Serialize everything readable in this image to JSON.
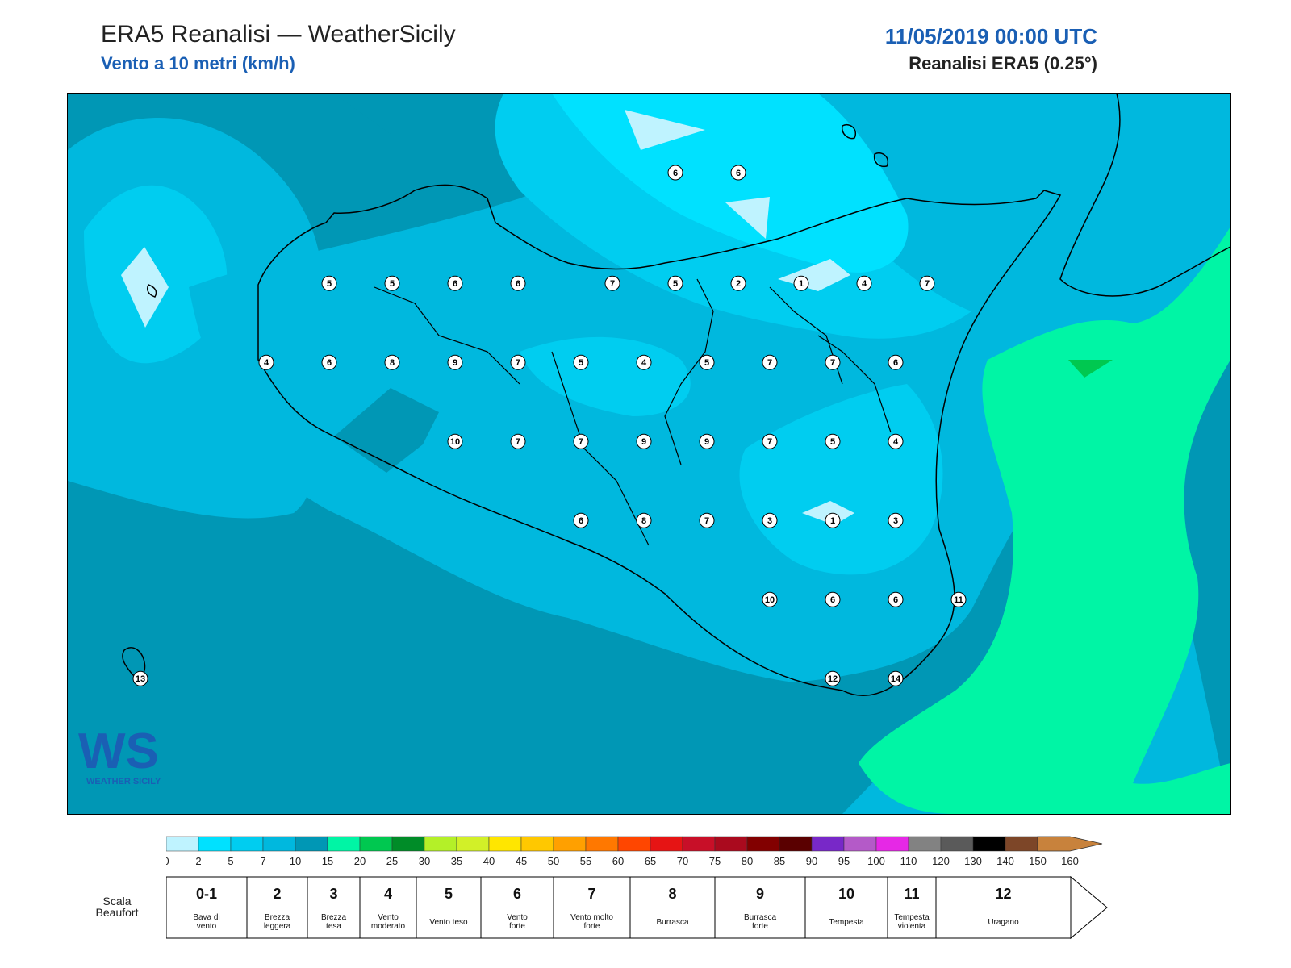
{
  "header": {
    "title": "ERA5 Reanalisi — WeatherSicily",
    "subtitle": "Vento a 10 metri (km/h)",
    "date": "11/05/2019 00:00 UTC",
    "source": "Reanalisi ERA5 (0.25°)"
  },
  "colorbar": {
    "ticks": [
      "0",
      "2",
      "5",
      "7",
      "10",
      "15",
      "20",
      "25",
      "30",
      "35",
      "40",
      "45",
      "50",
      "55",
      "60",
      "65",
      "70",
      "75",
      "80",
      "85",
      "90",
      "95",
      "100",
      "110",
      "120",
      "130",
      "140",
      "150",
      "160"
    ],
    "colors": [
      "#bff3ff",
      "#00e1ff",
      "#00cdf0",
      "#00b8de",
      "#0097b5",
      "#00f5a5",
      "#00c850",
      "#008c28",
      "#b4f028",
      "#d2f028",
      "#ffe600",
      "#ffc800",
      "#ffa000",
      "#ff7800",
      "#ff4600",
      "#e61414",
      "#c80f28",
      "#aa0a1e",
      "#820000",
      "#5a0000",
      "#7828c8",
      "#b45ac8",
      "#e628e6",
      "#828282",
      "#5a5a5a",
      "#000000",
      "#7d4628",
      "#c8823c"
    ]
  },
  "beaufort": {
    "title": "Scala Beaufort",
    "classes": [
      {
        "num": "0-1",
        "name": [
          "Bava di",
          "vento"
        ]
      },
      {
        "num": "2",
        "name": [
          "Brezza",
          "leggera"
        ]
      },
      {
        "num": "3",
        "name": [
          "Brezza",
          "tesa"
        ]
      },
      {
        "num": "4",
        "name": [
          "Vento",
          "moderato"
        ]
      },
      {
        "num": "5",
        "name": [
          "Vento teso"
        ]
      },
      {
        "num": "6",
        "name": [
          "Vento",
          "forte"
        ]
      },
      {
        "num": "7",
        "name": [
          "Vento molto",
          "forte"
        ]
      },
      {
        "num": "8",
        "name": [
          "Burrasca"
        ]
      },
      {
        "num": "9",
        "name": [
          "Burrasca",
          "forte"
        ]
      },
      {
        "num": "10",
        "name": [
          "Tempesta"
        ]
      },
      {
        "num": "11",
        "name": [
          "Tempesta",
          "violenta"
        ]
      },
      {
        "num": "12",
        "name": [
          "Uragano"
        ]
      }
    ]
  },
  "logo": {
    "text": "WEATHER SICILY",
    "letters": "WS"
  },
  "map": {
    "values": [
      {
        "v": "6",
        "lon": 15.25,
        "lat": 38.7
      },
      {
        "v": "6",
        "lon": 15.75,
        "lat": 38.7
      },
      {
        "v": "5",
        "lon": 12.5,
        "lat": 38.0
      },
      {
        "v": "5",
        "lon": 13.0,
        "lat": 38.0
      },
      {
        "v": "6",
        "lon": 13.5,
        "lat": 38.0
      },
      {
        "v": "6",
        "lon": 14.0,
        "lat": 38.0
      },
      {
        "v": "7",
        "lon": 14.75,
        "lat": 38.0
      },
      {
        "v": "5",
        "lon": 15.25,
        "lat": 38.0
      },
      {
        "v": "2",
        "lon": 15.75,
        "lat": 38.0
      },
      {
        "v": "1",
        "lon": 16.25,
        "lat": 38.0
      },
      {
        "v": "4",
        "lon": 16.75,
        "lat": 38.0
      },
      {
        "v": "7",
        "lon": 17.25,
        "lat": 38.0
      },
      {
        "v": "4",
        "lon": 12.0,
        "lat": 37.5
      },
      {
        "v": "6",
        "lon": 12.5,
        "lat": 37.5
      },
      {
        "v": "8",
        "lon": 13.0,
        "lat": 37.5
      },
      {
        "v": "9",
        "lon": 13.5,
        "lat": 37.5
      },
      {
        "v": "7",
        "lon": 14.0,
        "lat": 37.5
      },
      {
        "v": "5",
        "lon": 14.5,
        "lat": 37.5
      },
      {
        "v": "4",
        "lon": 15.0,
        "lat": 37.5
      },
      {
        "v": "5",
        "lon": 15.5,
        "lat": 37.5
      },
      {
        "v": "7",
        "lon": 16.0,
        "lat": 37.5
      },
      {
        "v": "7",
        "lon": 16.5,
        "lat": 37.5
      },
      {
        "v": "6",
        "lon": 17.0,
        "lat": 37.5
      },
      {
        "v": "10",
        "lon": 13.5,
        "lat": 37.0
      },
      {
        "v": "7",
        "lon": 14.0,
        "lat": 37.0
      },
      {
        "v": "7",
        "lon": 14.5,
        "lat": 37.0
      },
      {
        "v": "9",
        "lon": 15.0,
        "lat": 37.0
      },
      {
        "v": "9",
        "lon": 15.5,
        "lat": 37.0
      },
      {
        "v": "7",
        "lon": 16.0,
        "lat": 37.0
      },
      {
        "v": "5",
        "lon": 16.5,
        "lat": 37.0
      },
      {
        "v": "4",
        "lon": 17.0,
        "lat": 37.0
      },
      {
        "v": "6",
        "lon": 14.5,
        "lat": 36.5
      },
      {
        "v": "8",
        "lon": 15.0,
        "lat": 36.5
      },
      {
        "v": "7",
        "lon": 15.5,
        "lat": 36.5
      },
      {
        "v": "3",
        "lon": 16.0,
        "lat": 36.5
      },
      {
        "v": "1",
        "lon": 16.5,
        "lat": 36.5
      },
      {
        "v": "3",
        "lon": 17.0,
        "lat": 36.5
      },
      {
        "v": "10",
        "lon": 16.0,
        "lat": 36.0
      },
      {
        "v": "6",
        "lon": 16.5,
        "lat": 36.0
      },
      {
        "v": "6",
        "lon": 17.0,
        "lat": 36.0
      },
      {
        "v": "11",
        "lon": 17.5,
        "lat": 36.0
      },
      {
        "v": "13",
        "lon": 11.0,
        "lat": 35.5
      },
      {
        "v": "12",
        "lon": 16.5,
        "lat": 35.5
      },
      {
        "v": "14",
        "lon": 17.0,
        "lat": 35.5
      }
    ]
  }
}
